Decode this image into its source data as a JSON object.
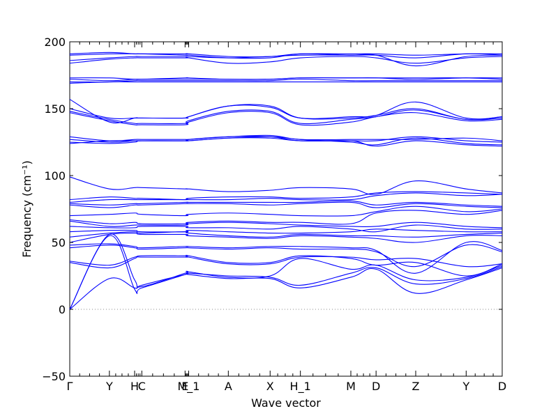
{
  "chart_data": {
    "type": "line",
    "title": "",
    "xlabel": "Wave vector",
    "ylabel": "Frequency (cm⁻¹)",
    "ylim": [
      -50,
      200
    ],
    "yticks": [
      -50,
      0,
      50,
      100,
      150,
      200
    ],
    "grid": false,
    "zero_line": 0,
    "line_color": "#0000ff",
    "zero_line_color": "#888888",
    "x_labels": [
      "Γ",
      "Y",
      "H",
      "C",
      "E",
      "M_1",
      "A",
      "X",
      "H_1",
      "M",
      "D",
      "Z",
      "Y",
      "D"
    ],
    "x_label_positions": [
      0.0,
      0.55,
      0.9,
      1.0,
      1.6,
      1.65,
      2.2,
      2.78,
      3.2,
      3.9,
      4.25,
      4.8,
      5.5,
      6.0
    ],
    "x_range": [
      0,
      6.0
    ],
    "segments": [
      {
        "x": [
          0,
          0.55,
          0.9,
          1.0,
          1.6,
          1.65,
          2.2,
          2.78,
          3.2,
          3.9,
          4.25,
          4.8,
          5.5,
          6.0
        ]
      }
    ],
    "series": [
      {
        "values": [
          0,
          23,
          16,
          18,
          26,
          26,
          23,
          23,
          16,
          24,
          30,
          12,
          22,
          31
        ]
      },
      {
        "values": [
          0,
          55,
          15,
          16,
          26,
          27,
          25,
          24,
          18,
          27,
          31,
          19,
          23,
          32
        ]
      },
      {
        "values": [
          0,
          56,
          22,
          17,
          27,
          28,
          24,
          25,
          38,
          30,
          33,
          22,
          24,
          33
        ]
      },
      {
        "values": [
          35,
          31,
          38,
          40,
          40,
          40,
          35,
          35,
          40,
          38,
          33,
          35,
          25,
          34
        ]
      },
      {
        "values": [
          36,
          33,
          39,
          39,
          39,
          39,
          34,
          34,
          39,
          39,
          37,
          38,
          32,
          34
        ]
      },
      {
        "values": [
          46,
          48,
          46,
          45,
          46,
          46,
          45,
          46,
          45,
          45,
          43,
          32,
          48,
          43
        ]
      },
      {
        "values": [
          48,
          49,
          47,
          46,
          47,
          47,
          46,
          47,
          47,
          46,
          44,
          27,
          50,
          44
        ]
      },
      {
        "values": [
          50,
          56,
          57,
          56,
          56,
          55,
          54,
          53,
          55,
          54,
          53,
          50,
          55,
          55
        ]
      },
      {
        "values": [
          54,
          57,
          58,
          57,
          58,
          57,
          55,
          54,
          56,
          55,
          55,
          54,
          56,
          57
        ]
      },
      {
        "values": [
          58,
          59,
          59,
          58,
          58,
          59,
          58,
          57,
          57,
          58,
          60,
          59,
          58,
          58
        ]
      },
      {
        "values": [
          62,
          61,
          61,
          62,
          62,
          61,
          61,
          60,
          62,
          60,
          58,
          63,
          60,
          60
        ]
      },
      {
        "values": [
          66,
          62,
          63,
          63,
          63,
          64,
          65,
          64,
          63,
          62,
          62,
          65,
          62,
          61
        ]
      },
      {
        "values": [
          67,
          64,
          65,
          64,
          64,
          65,
          66,
          65,
          65,
          64,
          72,
          74,
          71,
          74
        ]
      },
      {
        "values": [
          70,
          71,
          72,
          71,
          70,
          71,
          72,
          71,
          70,
          70,
          73,
          77,
          73,
          75
        ]
      },
      {
        "values": [
          78,
          76,
          78,
          78,
          79,
          79,
          79,
          78,
          79,
          80,
          76,
          79,
          77,
          76
        ]
      },
      {
        "values": [
          79,
          78,
          79,
          79,
          80,
          80,
          80,
          80,
          80,
          81,
          78,
          80,
          78,
          77
        ]
      },
      {
        "values": [
          80,
          82,
          82,
          82,
          82,
          82,
          82,
          83,
          82,
          82,
          85,
          87,
          85,
          86
        ]
      },
      {
        "values": [
          82,
          84,
          83,
          83,
          82,
          83,
          84,
          84,
          83,
          84,
          87,
          88,
          87,
          86
        ]
      },
      {
        "values": [
          99,
          90,
          91,
          91,
          90,
          90,
          88,
          89,
          91,
          90,
          86,
          96,
          90,
          87
        ]
      },
      {
        "values": [
          124,
          126,
          126,
          126,
          126,
          126,
          128,
          128,
          126,
          126,
          122,
          126,
          123,
          122
        ]
      },
      {
        "values": [
          125,
          124,
          125,
          126,
          126,
          126,
          128,
          129,
          127,
          125,
          123,
          128,
          124,
          123
        ]
      },
      {
        "values": [
          127,
          125,
          126,
          126,
          126,
          127,
          129,
          129,
          126,
          126,
          126,
          129,
          126,
          125
        ]
      },
      {
        "values": [
          129,
          126,
          127,
          127,
          127,
          127,
          129,
          130,
          127,
          127,
          127,
          127,
          128,
          126
        ]
      },
      {
        "values": [
          147,
          141,
          138,
          138,
          138,
          140,
          147,
          147,
          138,
          140,
          144,
          147,
          141,
          142
        ]
      },
      {
        "values": [
          148,
          142,
          139,
          139,
          139,
          141,
          148,
          148,
          139,
          142,
          144,
          149,
          142,
          143
        ]
      },
      {
        "values": [
          150,
          143,
          143,
          143,
          143,
          144,
          152,
          152,
          143,
          143,
          145,
          150,
          142,
          144
        ]
      },
      {
        "values": [
          157,
          140,
          143,
          143,
          143,
          144,
          152,
          151,
          143,
          144,
          145,
          155,
          143,
          144
        ]
      },
      {
        "values": [
          169,
          170,
          170,
          170,
          170,
          170,
          170,
          170,
          170,
          170,
          170,
          170,
          170,
          170
        ]
      },
      {
        "values": [
          170,
          170,
          171,
          171,
          171,
          171,
          171,
          171,
          172,
          171,
          171,
          171,
          171,
          171
        ]
      },
      {
        "values": [
          172,
          171,
          172,
          172,
          172,
          172,
          172,
          172,
          173,
          173,
          173,
          173,
          173,
          172
        ]
      },
      {
        "values": [
          173,
          173,
          172,
          172,
          173,
          173,
          172,
          172,
          173,
          173,
          173,
          172,
          173,
          173
        ]
      },
      {
        "values": [
          184,
          187,
          188,
          188,
          188,
          188,
          184,
          185,
          188,
          189,
          188,
          184,
          188,
          189
        ]
      },
      {
        "values": [
          186,
          188,
          189,
          189,
          189,
          189,
          188,
          189,
          190,
          190,
          190,
          182,
          189,
          190
        ]
      },
      {
        "values": [
          190,
          191,
          191,
          191,
          190,
          190,
          188,
          188,
          191,
          190,
          190,
          188,
          191,
          190
        ]
      },
      {
        "values": [
          191,
          192,
          191,
          191,
          191,
          191,
          189,
          189,
          191,
          191,
          191,
          190,
          191,
          191
        ]
      }
    ]
  }
}
